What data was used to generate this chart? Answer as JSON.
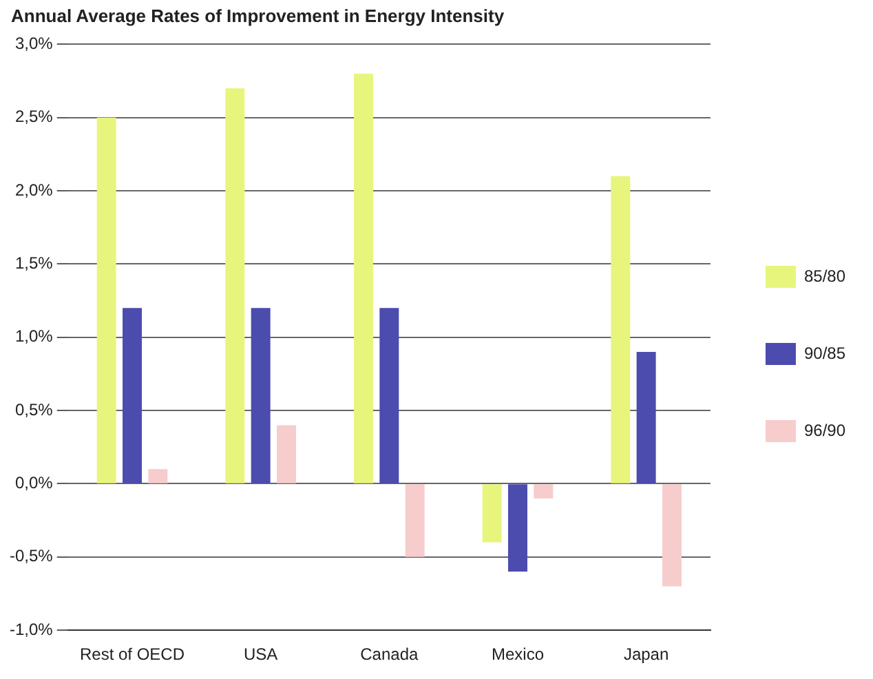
{
  "chart_data": {
    "type": "bar",
    "title": "Annual Average Rates of Improvement in Energy Intensity",
    "categories": [
      "Rest of OECD",
      "USA",
      "Canada",
      "Mexico",
      "Japan"
    ],
    "series": [
      {
        "name": "85/80",
        "color": "#e8f57c",
        "values": [
          2.5,
          2.7,
          2.8,
          -0.4,
          2.1
        ]
      },
      {
        "name": "90/85",
        "color": "#4b4cae",
        "values": [
          1.2,
          1.2,
          1.2,
          -0.6,
          0.9
        ]
      },
      {
        "name": "96/90",
        "color": "#f7cccc",
        "values": [
          0.1,
          0.4,
          -0.5,
          -0.1,
          -0.7
        ]
      }
    ],
    "ylim": [
      -1,
      3
    ],
    "yticks": [
      {
        "value": -1,
        "label": "-1,0%"
      },
      {
        "value": -0.5,
        "label": "-0,5%"
      },
      {
        "value": 0,
        "label": "0,0%"
      },
      {
        "value": 0.5,
        "label": "0,5%"
      },
      {
        "value": 1,
        "label": "1,0%"
      },
      {
        "value": 1.5,
        "label": "1,5%"
      },
      {
        "value": 2,
        "label": "2,0%"
      },
      {
        "value": 2.5,
        "label": "2,5%"
      },
      {
        "value": 3,
        "label": "3,0%"
      }
    ],
    "grid": "y",
    "legend": "right"
  }
}
